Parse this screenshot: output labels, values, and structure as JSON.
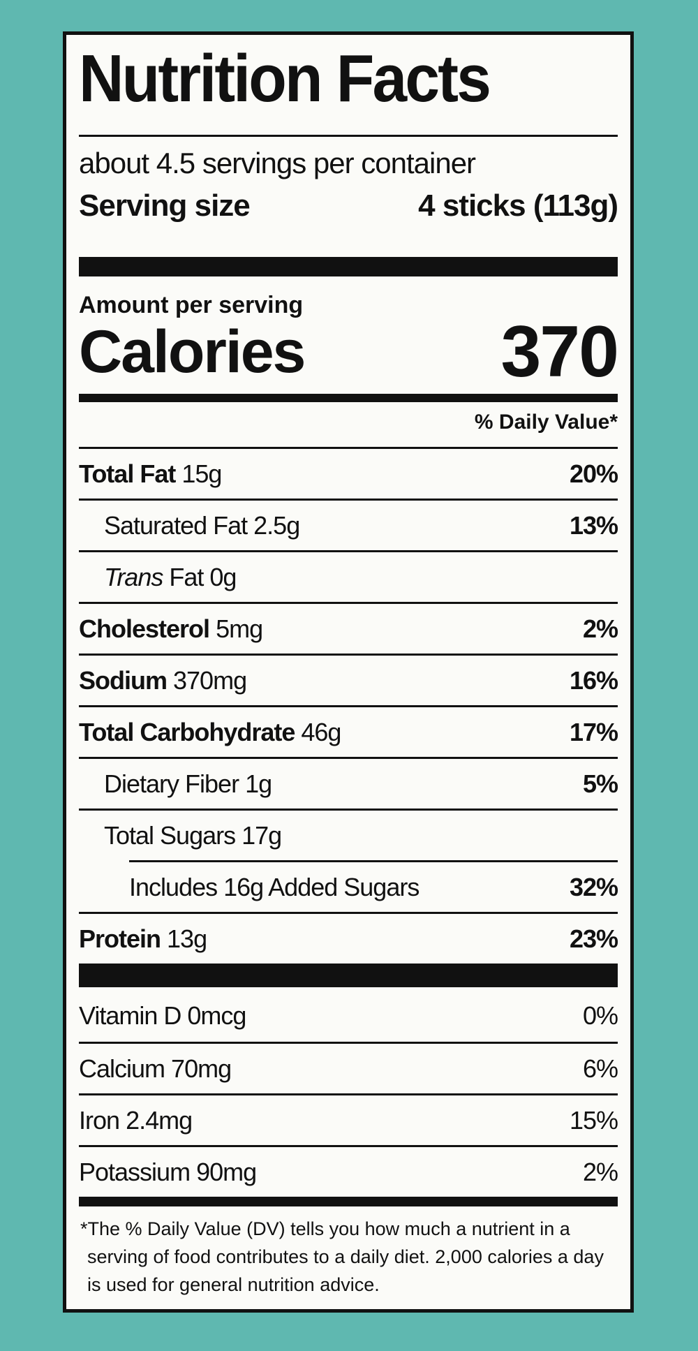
{
  "header": {
    "title": "Nutrition Facts",
    "servings": "about 4.5 servings per container",
    "serving_size_label": "Serving size",
    "serving_size_value": "4 sticks (113g)"
  },
  "calories": {
    "amount_label": "Amount per serving",
    "label": "Calories",
    "value": "370"
  },
  "daily_value_header": "% Daily Value*",
  "nutrients": [
    {
      "label": "Total Fat",
      "amount": "15g",
      "dv": "20%"
    },
    {
      "label": "Saturated Fat",
      "amount": "2.5g",
      "dv": "13%"
    },
    {
      "label_italic": "Trans",
      "label": "Fat",
      "amount": "0g"
    },
    {
      "label": "Cholesterol",
      "amount": "5mg",
      "dv": "2%"
    },
    {
      "label": "Sodium",
      "amount": "370mg",
      "dv": "16%"
    },
    {
      "label": "Total Carbohydrate",
      "amount": "46g",
      "dv": "17%"
    },
    {
      "label": "Dietary Fiber",
      "amount": "1g",
      "dv": "5%"
    },
    {
      "label": "Total Sugars",
      "amount": "17g"
    },
    {
      "label": "Includes 16g Added Sugars",
      "dv": "32%"
    },
    {
      "label": "Protein",
      "amount": "13g",
      "dv": "23%"
    }
  ],
  "vitamins": [
    {
      "label": "Vitamin D",
      "amount": "0mcg",
      "dv": "0%"
    },
    {
      "label": "Calcium",
      "amount": "70mg",
      "dv": "6%"
    },
    {
      "label": "Iron",
      "amount": "2.4mg",
      "dv": "15%"
    },
    {
      "label": "Potassium",
      "amount": "90mg",
      "dv": "2%"
    }
  ],
  "footnote": "*The % Daily Value (DV) tells you how much a nutrient in a serving of food contributes to a daily diet. 2,000 calories a day is used for general nutrition advice."
}
